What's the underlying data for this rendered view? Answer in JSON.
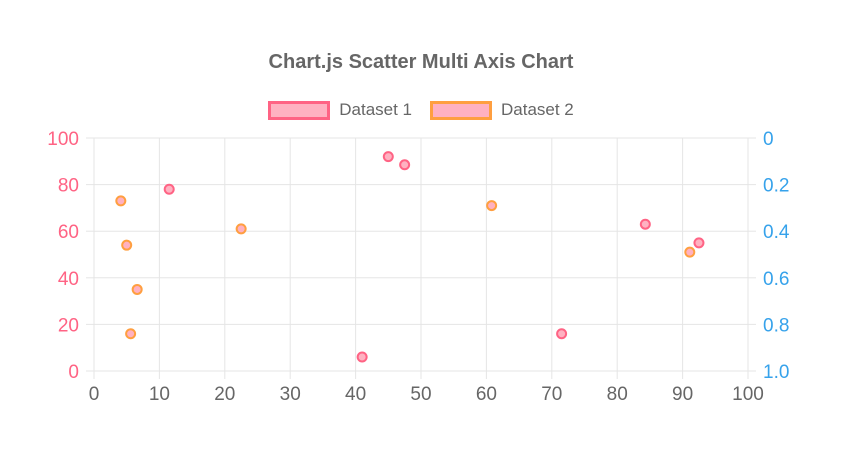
{
  "title": {
    "text": "Chart.js Scatter Multi Axis Chart"
  },
  "legend": {
    "items": [
      {
        "label": "Dataset 1",
        "fill": "#ffb1c1",
        "border": "#ff6384"
      },
      {
        "label": "Dataset 2",
        "fill": "#ffb1c1",
        "border": "#ff9f40"
      }
    ]
  },
  "chart_data": {
    "type": "scatter",
    "title": "Chart.js Scatter Multi Axis Chart",
    "background": "#ffffff",
    "grid": {
      "show": true,
      "color": "#e5e5e5"
    },
    "x_axis": {
      "position": "bottom",
      "min": 0,
      "max": 100,
      "ticks": [
        0,
        10,
        20,
        30,
        40,
        50,
        60,
        70,
        80,
        90,
        100
      ],
      "color": "#666666"
    },
    "y_axis_left": {
      "position": "left",
      "min": 0,
      "max": 100,
      "ticks": [
        0,
        20,
        40,
        60,
        80,
        100
      ],
      "color": "#ff6384"
    },
    "y_axis_right": {
      "position": "right",
      "min": 0,
      "max": 1,
      "reversed": true,
      "tick_values": [
        0,
        0.2,
        0.4,
        0.6,
        0.8,
        1.0
      ],
      "tick_labels": [
        "0",
        "0.2",
        "0.4",
        "0.6",
        "0.8",
        "1.0"
      ],
      "color": "#36a2eb"
    },
    "series": [
      {
        "name": "Dataset 1",
        "y_axis": "left",
        "point_fill": "#ffb1c1",
        "point_border": "#ff6384",
        "points": [
          {
            "x": 11.5,
            "y": 78
          },
          {
            "x": 41,
            "y": 6
          },
          {
            "x": 45,
            "y": 92
          },
          {
            "x": 47.5,
            "y": 88.5
          },
          {
            "x": 71.5,
            "y": 16
          },
          {
            "x": 84.3,
            "y": 63
          },
          {
            "x": 92.5,
            "y": 55
          }
        ]
      },
      {
        "name": "Dataset 2",
        "y_axis": "right",
        "point_fill": "#ffb1c1",
        "point_border": "#ff9f40",
        "points": [
          {
            "x": 4.1,
            "y": 0.27
          },
          {
            "x": 5,
            "y": 0.46
          },
          {
            "x": 6.6,
            "y": 0.65
          },
          {
            "x": 5.6,
            "y": 0.84
          },
          {
            "x": 22.5,
            "y": 0.39
          },
          {
            "x": 60.8,
            "y": 0.29
          },
          {
            "x": 91.1,
            "y": 0.49
          }
        ]
      }
    ]
  }
}
